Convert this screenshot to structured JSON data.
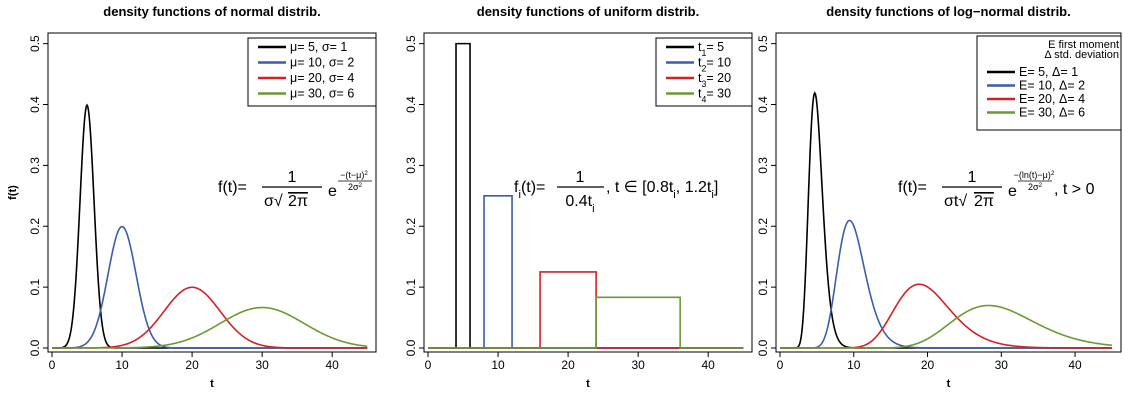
{
  "colors": {
    "black": "#000000",
    "blue": "#3a5fa8",
    "red": "#d42027",
    "green": "#6b9a34"
  },
  "chart_data": [
    {
      "type": "line",
      "title": "density functions of normal distrib.",
      "xlabel": "t",
      "ylabel": "f(t)",
      "xlim": [
        0,
        45
      ],
      "ylim": [
        0,
        0.5
      ],
      "xticks": [
        "0",
        "10",
        "20",
        "30",
        "40"
      ],
      "yticks": [
        "0.0",
        "0.1",
        "0.2",
        "0.3",
        "0.4",
        "0.5"
      ],
      "legend_position": "top-right",
      "legend": [
        {
          "sym1": "μ",
          "v1": "5",
          "sym2": "σ",
          "v2": "1",
          "color": "#000000"
        },
        {
          "sym1": "μ",
          "v1": "10",
          "sym2": "σ",
          "v2": "2",
          "color": "#3a5fa8"
        },
        {
          "sym1": "μ",
          "v1": "20",
          "sym2": "σ",
          "v2": "4",
          "color": "#d42027"
        },
        {
          "sym1": "μ",
          "v1": "30",
          "sym2": "σ",
          "v2": "6",
          "color": "#6b9a34"
        }
      ],
      "formula": {
        "lhs": "f(t)=",
        "numer": "1",
        "denom_left": "σ",
        "denom_right": "2π",
        "exp_numer": "−(t−μ)",
        "exp_numer_pow": "2",
        "exp_denom": "2σ",
        "exp_denom_pow": "2",
        "tail": ""
      },
      "series": [
        {
          "dist": "normal",
          "params": [
            5,
            1
          ],
          "color": "#000000"
        },
        {
          "dist": "normal",
          "params": [
            10,
            2
          ],
          "color": "#3a5fa8"
        },
        {
          "dist": "normal",
          "params": [
            20,
            4
          ],
          "color": "#d42027"
        },
        {
          "dist": "normal",
          "params": [
            30,
            6
          ],
          "color": "#6b9a34"
        }
      ]
    },
    {
      "type": "line",
      "title": "density functions of uniform distrib.",
      "xlabel": "t",
      "ylabel": "",
      "xlim": [
        0,
        45
      ],
      "ylim": [
        0,
        0.5
      ],
      "xticks": [
        "0",
        "10",
        "20",
        "30",
        "40"
      ],
      "yticks": [
        "0.0",
        "0.1",
        "0.2",
        "0.3",
        "0.4",
        "0.5"
      ],
      "legend_position": "top-right",
      "legend": [
        {
          "sym1": "t",
          "sub": "1",
          "v1": "5",
          "color": "#000000"
        },
        {
          "sym1": "t",
          "sub": "2",
          "v1": "10",
          "color": "#3a5fa8"
        },
        {
          "sym1": "t",
          "sub": "3",
          "v1": "20",
          "color": "#d42027"
        },
        {
          "sym1": "t",
          "sub": "4",
          "v1": "30",
          "color": "#6b9a34"
        }
      ],
      "formula": {
        "lhs": "f",
        "lhs_sub": "i",
        "lhs_rest": "(t)=",
        "numer": "1",
        "denom": "0.4t",
        "denom_sub": "i",
        "tail": ", t ∈ [0.8t",
        "tail_sub1": "i",
        "tail_mid": ", 1.2t",
        "tail_sub2": "i",
        "tail_end": "]"
      },
      "series": [
        {
          "dist": "uniform",
          "params": [
            4,
            6
          ],
          "color": "#000000"
        },
        {
          "dist": "uniform",
          "params": [
            8,
            12
          ],
          "color": "#3a5fa8"
        },
        {
          "dist": "uniform",
          "params": [
            16,
            24
          ],
          "color": "#d42027"
        },
        {
          "dist": "uniform",
          "params": [
            24,
            36
          ],
          "color": "#6b9a34"
        }
      ]
    },
    {
      "type": "line",
      "title": "density functions of log−normal distrib.",
      "xlabel": "t",
      "ylabel": "",
      "xlim": [
        0,
        45
      ],
      "ylim": [
        0,
        0.5
      ],
      "xticks": [
        "0",
        "10",
        "20",
        "30",
        "40"
      ],
      "yticks": [
        "0.0",
        "0.1",
        "0.2",
        "0.3",
        "0.4",
        "0.5"
      ],
      "legend_position": "top-right",
      "legend_header": [
        "E first moment",
        "Δ std. deviation"
      ],
      "legend": [
        {
          "sym1": "E",
          "v1": "5",
          "sym2": "Δ",
          "v2": "1",
          "color": "#000000"
        },
        {
          "sym1": "E",
          "v1": "10",
          "sym2": "Δ",
          "v2": "2",
          "color": "#3a5fa8"
        },
        {
          "sym1": "E",
          "v1": "20",
          "sym2": "Δ",
          "v2": "4",
          "color": "#d42027"
        },
        {
          "sym1": "E",
          "v1": "30",
          "sym2": "Δ",
          "v2": "6",
          "color": "#6b9a34"
        }
      ],
      "formula": {
        "lhs": "f(t)=",
        "numer": "1",
        "denom_left": "σt",
        "denom_right": "2π",
        "exp_numer": "−(ln(t)−μ)",
        "exp_numer_pow": "2",
        "exp_denom": "2σ",
        "exp_denom_pow": "2",
        "tail": ", t > 0"
      },
      "series": [
        {
          "dist": "lognormal",
          "params": [
            5,
            1
          ],
          "color": "#000000"
        },
        {
          "dist": "lognormal",
          "params": [
            10,
            2
          ],
          "color": "#3a5fa8"
        },
        {
          "dist": "lognormal",
          "params": [
            20,
            4
          ],
          "color": "#d42027"
        },
        {
          "dist": "lognormal",
          "params": [
            30,
            6
          ],
          "color": "#6b9a34"
        }
      ]
    }
  ]
}
